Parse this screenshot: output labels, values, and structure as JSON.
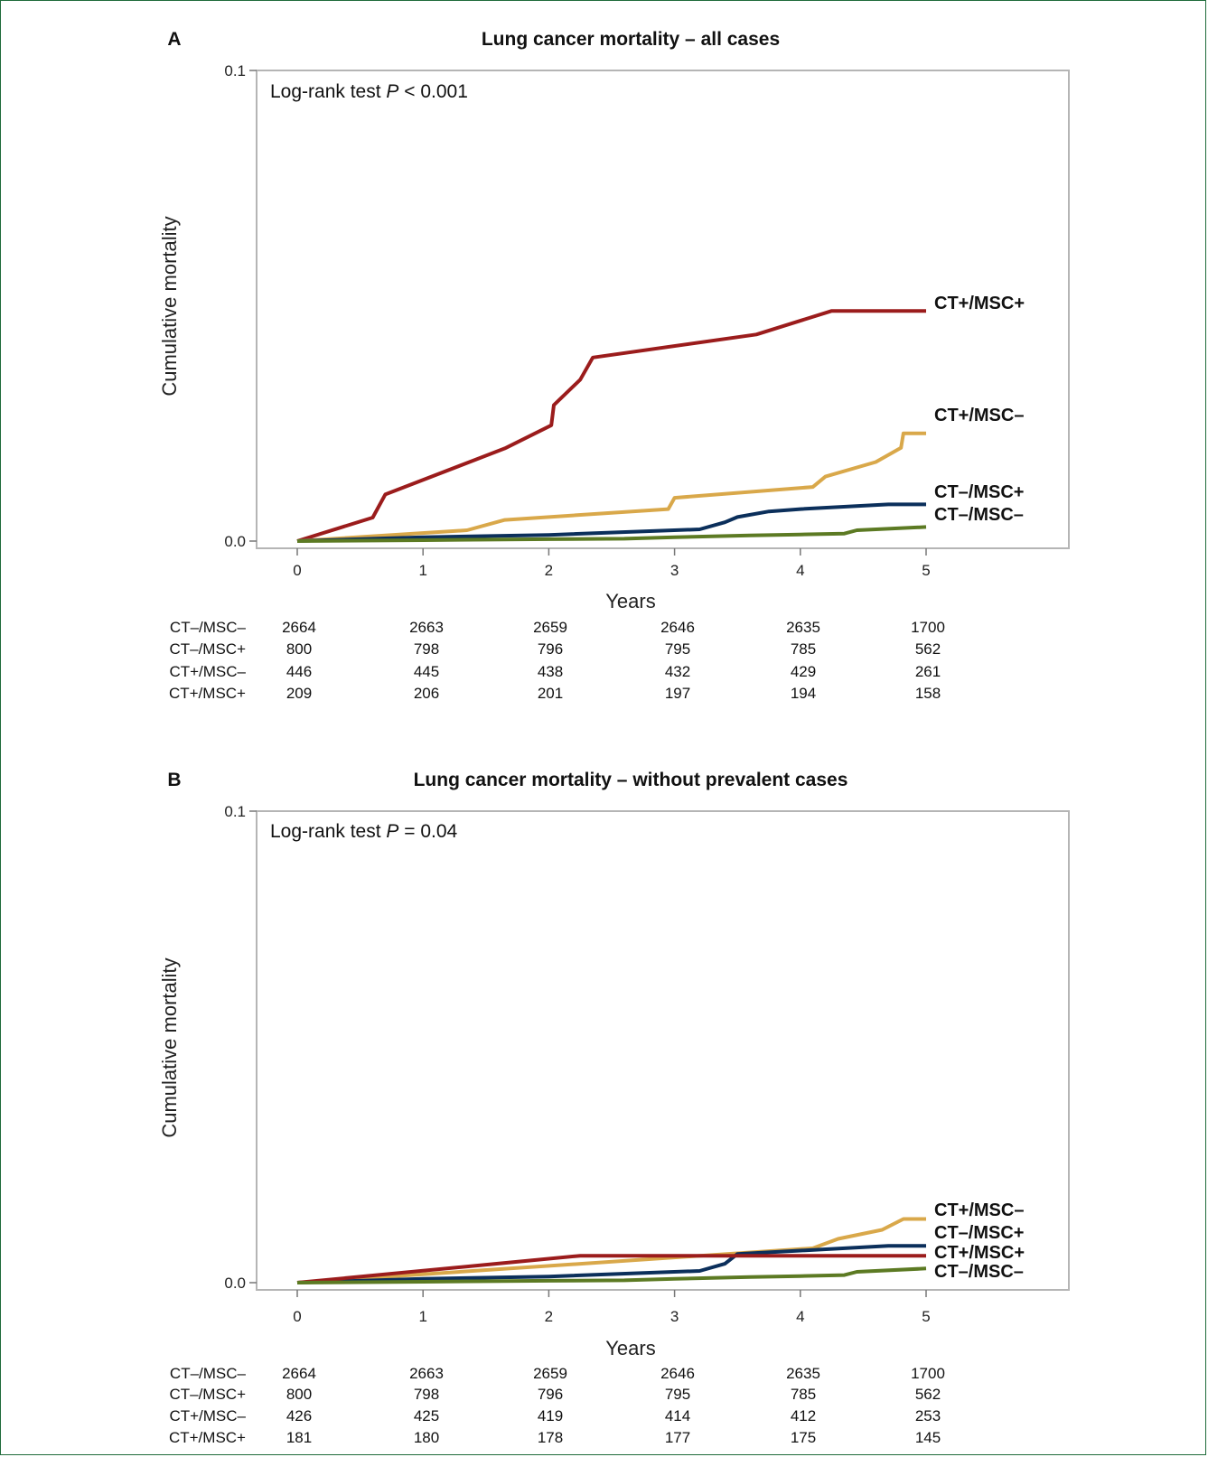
{
  "chart_data": [
    {
      "type": "line",
      "panel": "A",
      "title": "Lung cancer mortality – all cases",
      "xlabel": "Years",
      "ylabel": "Cumulative mortality",
      "xlim": [
        0,
        5
      ],
      "ylim": [
        0.0,
        0.1
      ],
      "xticks": [
        "0",
        "1",
        "2",
        "3",
        "4",
        "5"
      ],
      "yticks": [
        "0.0",
        "0.1"
      ],
      "annotation": {
        "prefix": "Log-rank test ",
        "p": "P",
        "suffix": " < 0.001"
      },
      "series": [
        {
          "name": "CT+/MSC+",
          "color": "#9b1c1c",
          "x": [
            0,
            0.6,
            0.7,
            1.65,
            2.02,
            2.04,
            2.25,
            2.35,
            3.65,
            4.25,
            5
          ],
          "y": [
            0,
            0.005,
            0.0099,
            0.0197,
            0.0246,
            0.0289,
            0.0343,
            0.039,
            0.0439,
            0.0489,
            0.0489
          ]
        },
        {
          "name": "CT+/MSC–",
          "color": "#d9a84a",
          "x": [
            0,
            1.35,
            1.65,
            2.95,
            3.0,
            4.1,
            4.2,
            4.6,
            4.8,
            4.82,
            5
          ],
          "y": [
            0,
            0.0023,
            0.0045,
            0.0068,
            0.0092,
            0.0115,
            0.0137,
            0.0168,
            0.0198,
            0.0229,
            0.0229
          ]
        },
        {
          "name": "CT–/MSC+",
          "color": "#0b2f5b",
          "x": [
            0,
            1.0,
            2.0,
            3.2,
            3.4,
            3.5,
            3.75,
            4.0,
            4.7,
            5
          ],
          "y": [
            0,
            0.0008,
            0.0013,
            0.0025,
            0.004,
            0.0051,
            0.0063,
            0.0068,
            0.0078,
            0.0078
          ]
        },
        {
          "name": "CT–/MSC–",
          "color": "#5c7a23",
          "x": [
            0,
            1.0,
            2.0,
            2.6,
            3.0,
            3.6,
            4.0,
            4.35,
            4.45,
            5
          ],
          "y": [
            0,
            0.0002,
            0.0004,
            0.0005,
            0.0008,
            0.0012,
            0.0014,
            0.0016,
            0.0023,
            0.003
          ]
        }
      ],
      "risk_table": [
        {
          "label": "CT–/MSC–",
          "values": [
            "2664",
            "2663",
            "2659",
            "2646",
            "2635",
            "1700"
          ]
        },
        {
          "label": "CT–/MSC+",
          "values": [
            "800",
            "798",
            "796",
            "795",
            "785",
            "562"
          ]
        },
        {
          "label": "CT+/MSC–",
          "values": [
            "446",
            "445",
            "438",
            "432",
            "429",
            "261"
          ]
        },
        {
          "label": "CT+/MSC+",
          "values": [
            "209",
            "206",
            "201",
            "197",
            "194",
            "158"
          ]
        }
      ]
    },
    {
      "type": "line",
      "panel": "B",
      "title": "Lung cancer mortality – without prevalent cases",
      "xlabel": "Years",
      "ylabel": "Cumulative mortality",
      "xlim": [
        0,
        5
      ],
      "ylim": [
        0.0,
        0.1
      ],
      "xticks": [
        "0",
        "1",
        "2",
        "3",
        "4",
        "5"
      ],
      "yticks": [
        "0.0",
        "0.1"
      ],
      "annotation": {
        "prefix": "Log-rank test ",
        "p": "P",
        "suffix": " = 0.04"
      },
      "series": [
        {
          "name": "CT+/MSC–",
          "color": "#d9a84a",
          "x": [
            0,
            4.1,
            4.3,
            4.65,
            4.82,
            5
          ],
          "y": [
            0,
            0.0073,
            0.0093,
            0.0112,
            0.0135,
            0.0135
          ]
        },
        {
          "name": "CT–/MSC+",
          "color": "#0b2f5b",
          "x": [
            0,
            1.0,
            2.0,
            3.2,
            3.4,
            3.5,
            4.0,
            4.7,
            5
          ],
          "y": [
            0,
            0.0008,
            0.0013,
            0.0025,
            0.004,
            0.0061,
            0.0068,
            0.0078,
            0.0078
          ]
        },
        {
          "name": "CT+/MSC+",
          "color": "#9b1c1c",
          "x": [
            0,
            2.25,
            5
          ],
          "y": [
            0,
            0.0057,
            0.0057
          ]
        },
        {
          "name": "CT–/MSC–",
          "color": "#5c7a23",
          "x": [
            0,
            1.0,
            2.0,
            2.6,
            3.0,
            3.6,
            4.0,
            4.35,
            4.45,
            5
          ],
          "y": [
            0,
            0.0002,
            0.0004,
            0.0005,
            0.0008,
            0.0012,
            0.0014,
            0.0016,
            0.0023,
            0.003
          ]
        }
      ],
      "risk_table": [
        {
          "label": "CT–/MSC–",
          "values": [
            "2664",
            "2663",
            "2659",
            "2646",
            "2635",
            "1700"
          ]
        },
        {
          "label": "CT–/MSC+",
          "values": [
            "800",
            "798",
            "796",
            "795",
            "785",
            "562"
          ]
        },
        {
          "label": "CT+/MSC–",
          "values": [
            "426",
            "425",
            "419",
            "414",
            "412",
            "253"
          ]
        },
        {
          "label": "CT+/MSC+",
          "values": [
            "181",
            "180",
            "178",
            "177",
            "175",
            "145"
          ]
        }
      ]
    }
  ]
}
